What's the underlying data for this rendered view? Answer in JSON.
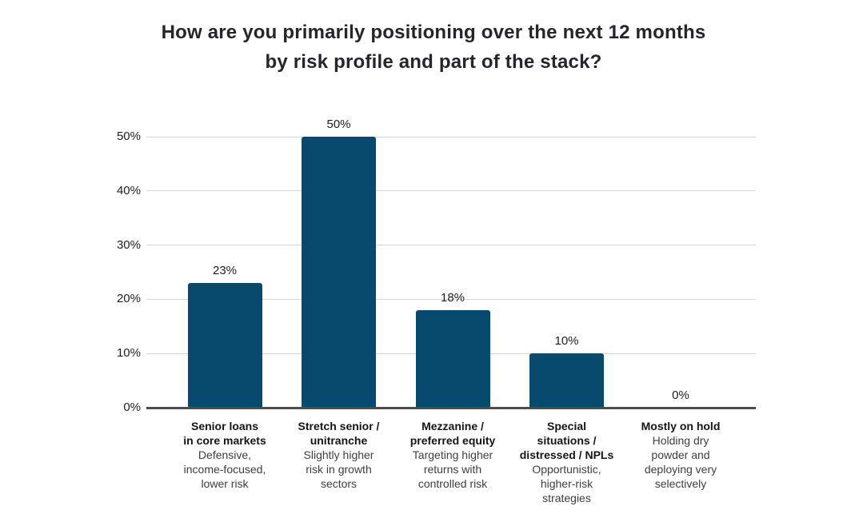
{
  "title": {
    "line1": "How are you primarily positioning over the next 12 months",
    "line2": "by risk profile and part of the stack?"
  },
  "colors": {
    "bar": "#084A6E",
    "gridline": "#D6D6D6",
    "axis_line": "#4C4C4C",
    "title_text": "#26242C",
    "tick_text": "#1C1C1C",
    "value_text": "#1C1C1C",
    "category_text": "#151515",
    "description_text": "#3E3E3E"
  },
  "chart_data": {
    "type": "bar",
    "title": "How are you primarily positioning over the next 12 months by risk profile and part of the stack?",
    "categories": [
      "Senior loans in core markets",
      "Stretch senior / unitranche",
      "Mezzanine / preferred equity",
      "Special situations / distressed / NPLs",
      "Mostly on hold"
    ],
    "category_descriptions": [
      "Defensive, income-focused, lower risk",
      "Slightly higher risk in growth sectors",
      "Targeting higher returns with controlled risk",
      "Opportunistic, higher-risk strategies",
      "Holding dry powder and deploying very selectively"
    ],
    "category_label_lines": [
      [
        "Senior loans",
        "in core markets"
      ],
      [
        "Stretch senior /",
        "unitranche"
      ],
      [
        "Mezzanine /",
        "preferred equity"
      ],
      [
        "Special",
        "situations /",
        "distressed / NPLs"
      ],
      [
        "Mostly on hold"
      ]
    ],
    "description_lines": [
      [
        "Defensive,",
        "income-focused,",
        "lower risk"
      ],
      [
        "Slightly higher",
        "risk in growth",
        "sectors"
      ],
      [
        "Targeting higher",
        "returns with",
        "controlled risk"
      ],
      [
        "Opportunistic,",
        "higher-risk",
        "strategies"
      ],
      [
        "Holding dry",
        "powder and",
        "deploying very",
        "selectively"
      ]
    ],
    "values": [
      23,
      50,
      18,
      10,
      0
    ],
    "value_labels": [
      "23%",
      "50%",
      "18%",
      "10%",
      "0%"
    ],
    "ylim": [
      0,
      50
    ],
    "yticks": [
      0,
      10,
      20,
      30,
      40,
      50
    ],
    "ytick_labels": [
      "0%",
      "10%",
      "20%",
      "30%",
      "40%",
      "50%"
    ],
    "grid": true,
    "legend": false,
    "xlabel": "",
    "ylabel": ""
  }
}
